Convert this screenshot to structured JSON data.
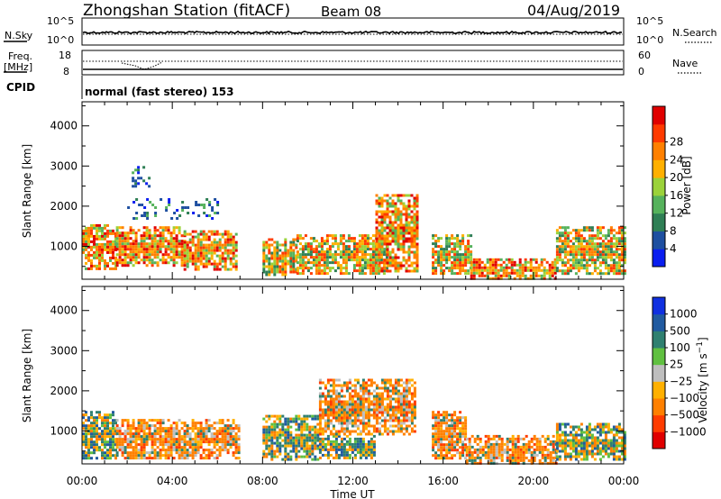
{
  "header": {
    "title": "Zhongshan Station (fitACF)",
    "beam": "Beam 08",
    "date": "04/Aug/2019"
  },
  "panels": {
    "nsky": {
      "label": "N.Sky",
      "ticks": [
        "10^5",
        "10^0"
      ]
    },
    "nsearch": {
      "label": "N.Search",
      "ticks": [
        "10^5",
        "10^0"
      ]
    },
    "freq": {
      "label_line1": "Freq.",
      "label_line2": "[MHz]",
      "ticks": [
        "18",
        "8"
      ]
    },
    "nave": {
      "label": "Nave",
      "ticks": [
        "60",
        "0"
      ]
    },
    "cpid": {
      "label": "CPID",
      "text": "normal (fast stereo) 153"
    }
  },
  "chart_data": [
    {
      "type": "heatmap",
      "title": "",
      "xlabel": "Time UT",
      "ylabel": "Slant Range [km]",
      "x_ticks": [
        "00:00",
        "04:00",
        "08:00",
        "12:00",
        "16:00",
        "20:00",
        "00:00"
      ],
      "y_ticks": [
        "1000",
        "2000",
        "3000",
        "4000"
      ],
      "ylim": [
        180,
        4600
      ],
      "colorbar": {
        "label": "Power [dB]",
        "ticks": [
          "4",
          "8",
          "12",
          "16",
          "20",
          "24",
          "28"
        ],
        "colors": [
          "#0a1ef0",
          "#1e4fa0",
          "#2f7f55",
          "#56b25c",
          "#9bd23a",
          "#ffb000",
          "#ff8000",
          "#ff3a00",
          "#e00000"
        ]
      },
      "regions": [
        {
          "t": [
            0.0,
            1.5
          ],
          "range": [
            450,
            1550
          ],
          "level": "high"
        },
        {
          "t": [
            1.5,
            4.5
          ],
          "range": [
            500,
            1500
          ],
          "level": "high"
        },
        {
          "t": [
            4.5,
            6.8
          ],
          "range": [
            450,
            1400
          ],
          "level": "high"
        },
        {
          "t": [
            8.0,
            9.5
          ],
          "range": [
            300,
            1200
          ],
          "level": "medium"
        },
        {
          "t": [
            9.5,
            13.5
          ],
          "range": [
            300,
            1300
          ],
          "level": "medium"
        },
        {
          "t": [
            13.0,
            14.8
          ],
          "range": [
            400,
            2300
          ],
          "level": "high"
        },
        {
          "t": [
            15.5,
            17.2
          ],
          "range": [
            300,
            1300
          ],
          "level": "medium"
        },
        {
          "t": [
            17.2,
            21.0
          ],
          "range": [
            180,
            700
          ],
          "level": "high"
        },
        {
          "t": [
            21.0,
            24.0
          ],
          "range": [
            300,
            1500
          ],
          "level": "medium"
        },
        {
          "t": [
            2.2,
            3.0
          ],
          "range": [
            2500,
            3000
          ],
          "level": "low"
        },
        {
          "t": [
            2.0,
            6.0
          ],
          "range": [
            1700,
            2200
          ],
          "level": "low"
        }
      ]
    },
    {
      "type": "heatmap",
      "title": "",
      "xlabel": "Time UT",
      "ylabel": "Slant Range [km]",
      "x_ticks": [
        "00:00",
        "04:00",
        "08:00",
        "12:00",
        "16:00",
        "20:00",
        "00:00"
      ],
      "y_ticks": [
        "1000",
        "2000",
        "3000",
        "4000"
      ],
      "ylim": [
        180,
        4600
      ],
      "colorbar": {
        "label": "Velocity [m s^-1]",
        "ticks": [
          "1000",
          "500",
          "100",
          "25",
          "−25",
          "−100",
          "−500",
          "−1000"
        ],
        "colors": [
          "#1030e0",
          "#205aa0",
          "#2f8070",
          "#60c040",
          "#bebebe",
          "#ffb000",
          "#ff8000",
          "#ff3c00",
          "#e00000"
        ]
      },
      "regions": [
        {
          "t": [
            0.0,
            1.5
          ],
          "range": [
            300,
            1500
          ],
          "level": "toward"
        },
        {
          "t": [
            1.5,
            7.0
          ],
          "range": [
            300,
            1300
          ],
          "level": "away"
        },
        {
          "t": [
            8.0,
            10.5
          ],
          "range": [
            300,
            1400
          ],
          "level": "toward"
        },
        {
          "t": [
            10.5,
            13.0
          ],
          "range": [
            300,
            900
          ],
          "level": "toward"
        },
        {
          "t": [
            10.5,
            14.8
          ],
          "range": [
            900,
            2300
          ],
          "level": "away"
        },
        {
          "t": [
            15.5,
            17.0
          ],
          "range": [
            300,
            1500
          ],
          "level": "away"
        },
        {
          "t": [
            17.0,
            21.0
          ],
          "range": [
            180,
            900
          ],
          "level": "away"
        },
        {
          "t": [
            21.0,
            24.0
          ],
          "range": [
            300,
            1200
          ],
          "level": "mixed"
        }
      ]
    }
  ]
}
